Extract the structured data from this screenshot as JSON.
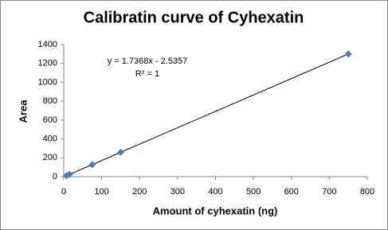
{
  "chart_data": {
    "type": "scatter",
    "title": "Calibratin curve of Cyhexatin",
    "x_label": "Amount of cyhexatin (ng)",
    "y_label": "Area",
    "x": [
      7.5,
      15,
      75,
      150,
      750
    ],
    "series": [
      {
        "color": "#4a7ebb",
        "values": [
          11,
          24,
          128,
          258,
          1300
        ]
      }
    ],
    "xlim": [
      0,
      800
    ],
    "xticks": [
      0,
      100,
      200,
      300,
      400,
      500,
      600,
      700,
      800
    ],
    "ylim": [
      0,
      1400
    ],
    "yticks": [
      0,
      200,
      400,
      600,
      800,
      1000,
      1200,
      1400
    ],
    "grid": false,
    "trendline": {
      "slope": 1.7368,
      "intercept": -2.5357,
      "label": "y = 1.7368x - 2.5357",
      "r2_label": "R² = 1"
    }
  }
}
